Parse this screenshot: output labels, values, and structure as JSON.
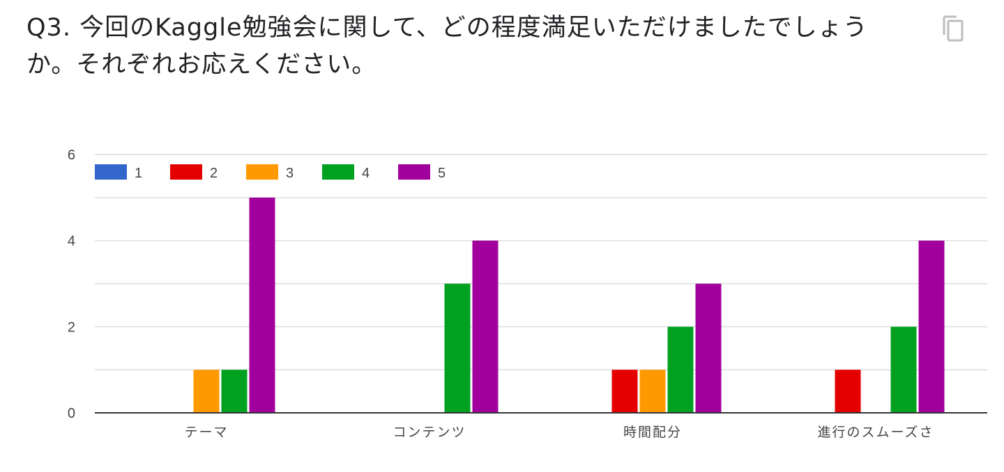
{
  "question": {
    "title": "Q3. 今回のKaggle勉強会に関して、どの程度満足いただけましたでしょうか。それぞれお応えください。"
  },
  "icons": {
    "copy": "copy-icon"
  },
  "colors": {
    "1": "#3366cc",
    "2": "#e50000",
    "3": "#ff9900",
    "4": "#00a020",
    "5": "#a2009c",
    "grid": "#dddddd",
    "axis": "#333333"
  },
  "chart_data": {
    "type": "bar",
    "categories": [
      "テーマ",
      "コンテンツ",
      "時間配分",
      "進行のスムーズさ"
    ],
    "series": [
      {
        "name": "1",
        "values": [
          0,
          0,
          0,
          0
        ]
      },
      {
        "name": "2",
        "values": [
          0,
          0,
          1,
          1
        ]
      },
      {
        "name": "3",
        "values": [
          1,
          0,
          1,
          0
        ]
      },
      {
        "name": "4",
        "values": [
          1,
          3,
          2,
          2
        ]
      },
      {
        "name": "5",
        "values": [
          5,
          4,
          3,
          4
        ]
      }
    ],
    "yticks": [
      0,
      2,
      4,
      6
    ],
    "ylim": [
      0,
      6
    ],
    "legend_position": "top-left",
    "grid": true
  }
}
